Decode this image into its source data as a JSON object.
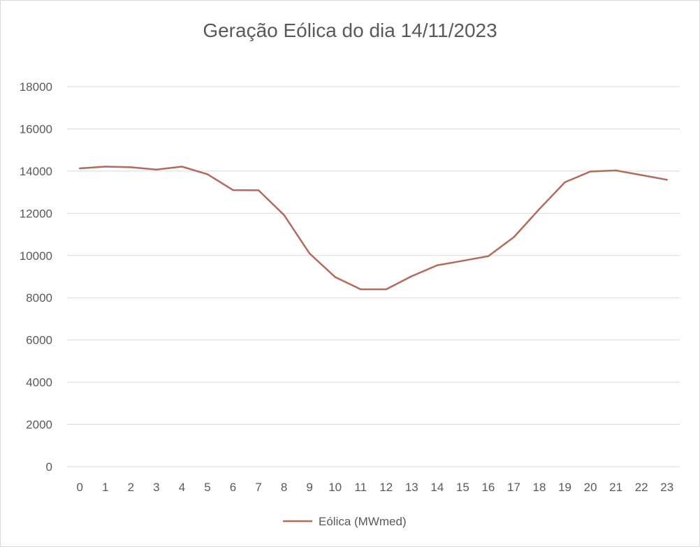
{
  "chart_data": {
    "type": "line",
    "title": "Geração Eólica do dia 14/11/2023",
    "xlabel": "",
    "ylabel": "",
    "x": [
      0,
      1,
      2,
      3,
      4,
      5,
      6,
      7,
      8,
      9,
      10,
      11,
      12,
      13,
      14,
      15,
      16,
      17,
      18,
      19,
      20,
      21,
      22,
      23
    ],
    "x_tick_labels": [
      "0",
      "1",
      "2",
      "3",
      "4",
      "5",
      "6",
      "7",
      "8",
      "9",
      "10",
      "11",
      "12",
      "13",
      "14",
      "15",
      "16",
      "17",
      "18",
      "19",
      "20",
      "21",
      "22",
      "23"
    ],
    "y_tick_labels": [
      "0",
      "2000",
      "4000",
      "6000",
      "8000",
      "10000",
      "12000",
      "14000",
      "16000",
      "18000"
    ],
    "ylim": [
      0,
      18000
    ],
    "grid": true,
    "legend_position": "bottom",
    "series": [
      {
        "name": "Eólica (MWmed)",
        "color": "#b5695c",
        "values": [
          14130,
          14210,
          14180,
          14070,
          14210,
          13850,
          13100,
          13090,
          11920,
          10100,
          8980,
          8400,
          8400,
          9020,
          9540,
          9750,
          9970,
          10870,
          12200,
          13470,
          13980,
          14030,
          13810,
          13590
        ]
      }
    ]
  }
}
